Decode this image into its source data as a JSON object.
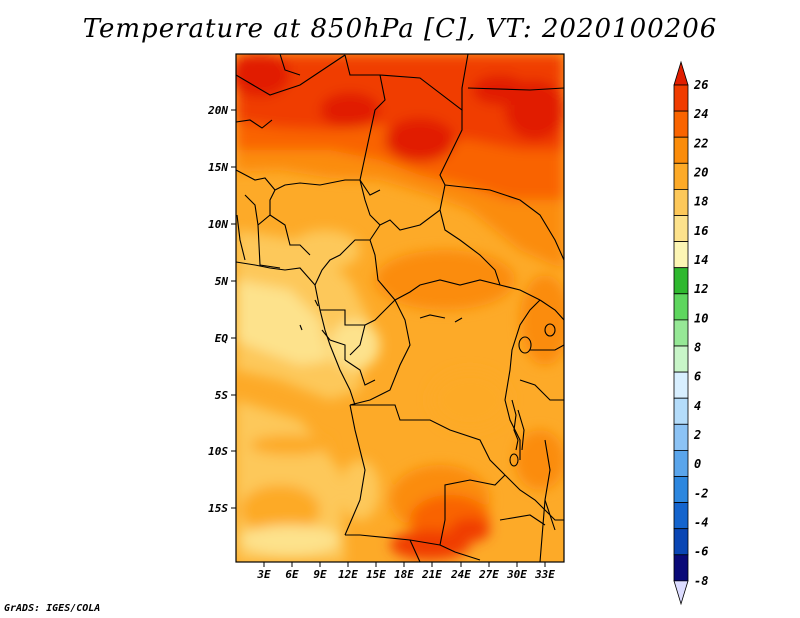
{
  "title": "Temperature at 850hPa [C], VT: 2020100206",
  "footer": "GrADS: IGES/COLA",
  "map": {
    "lat_labels": [
      "20N",
      "15N",
      "10N",
      "5N",
      "EQ",
      "5S",
      "10S",
      "15S"
    ],
    "lon_labels": [
      "3E",
      "6E",
      "9E",
      "12E",
      "15E",
      "18E",
      "21E",
      "24E",
      "27E",
      "30E",
      "33E"
    ]
  },
  "colorbar": {
    "levels": [
      "26",
      "24",
      "22",
      "20",
      "18",
      "16",
      "14",
      "12",
      "10",
      "8",
      "6",
      "4",
      "2",
      "0",
      "-2",
      "-4",
      "-6",
      "-8"
    ],
    "colors": [
      "#e11e00",
      "#f03c00",
      "#f96400",
      "#fb8c0a",
      "#fdaa28",
      "#fdc85a",
      "#fde28c",
      "#fcf5b4",
      "#2eb82e",
      "#5ed65e",
      "#96e896",
      "#c8f5c8",
      "#d8efff",
      "#b4dcfa",
      "#8cc3f5",
      "#5aa5eb",
      "#2d87df",
      "#1464cd",
      "#0a46b4",
      "#0a0a78",
      "#dcdcff"
    ]
  }
}
